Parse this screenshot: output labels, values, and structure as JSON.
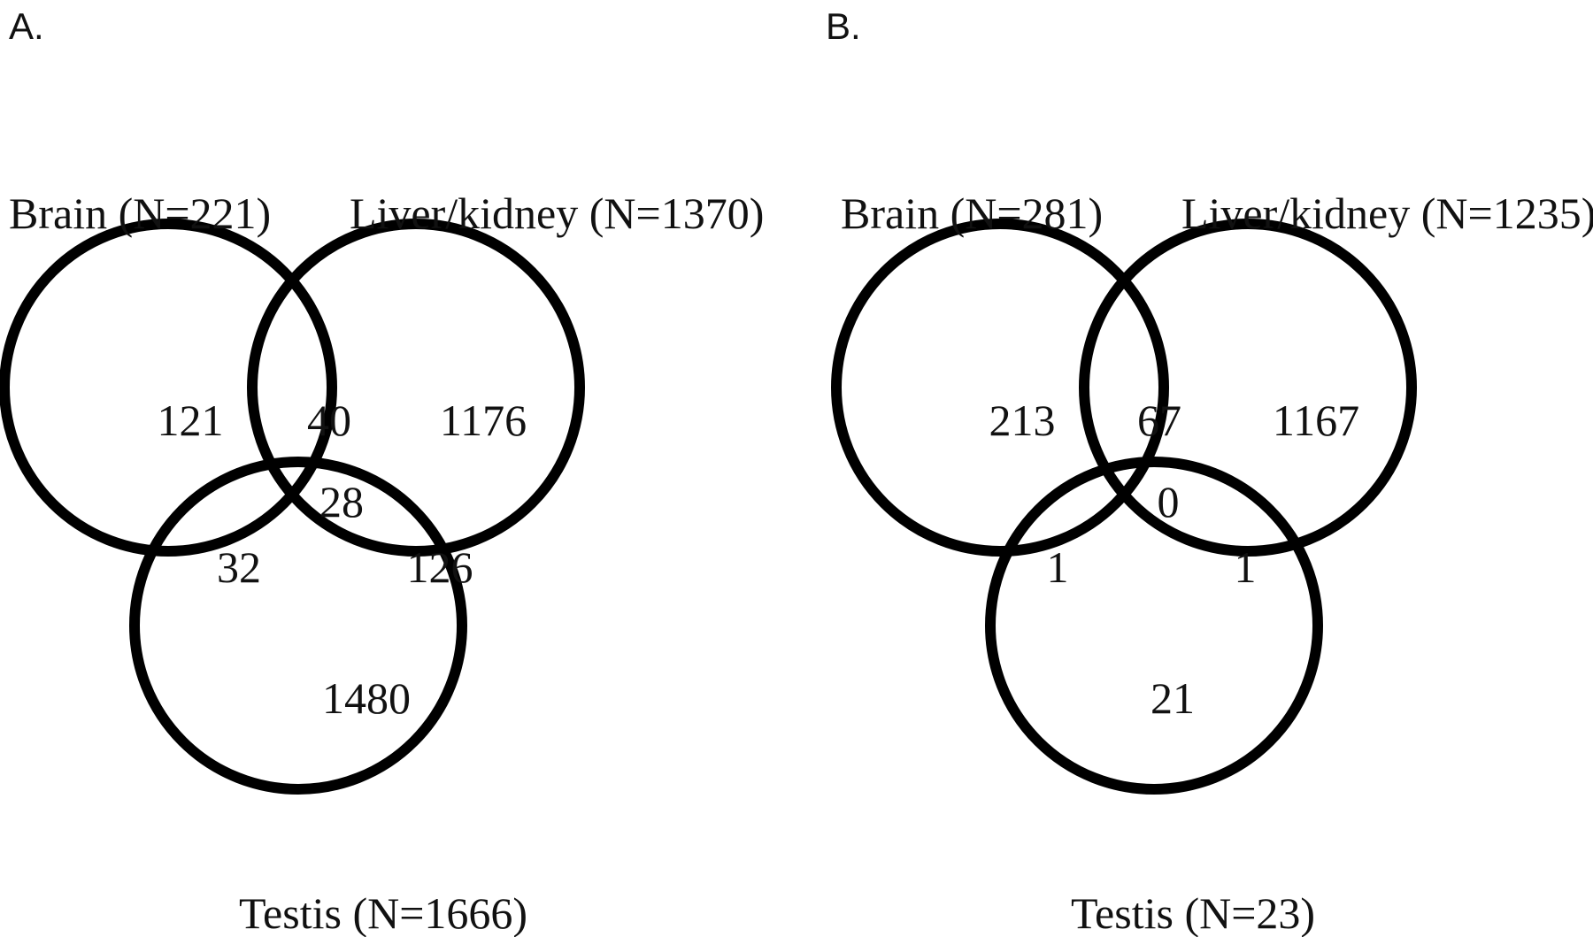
{
  "panels": [
    {
      "letter": "A.",
      "sets": {
        "brain": "Brain (N=221)",
        "liver_kidney": "Liver/kidney (N=1370)",
        "testis": "Testis (N=1666)"
      },
      "regions": {
        "brain_only": "121",
        "brain_liver": "40",
        "liver_only": "1176",
        "all_three": "28",
        "brain_testis": "32",
        "liver_testis": "126",
        "testis_only": "1480"
      }
    },
    {
      "letter": "B.",
      "sets": {
        "brain": "Brain (N=281)",
        "liver_kidney": "Liver/kidney (N=1235)",
        "testis": "Testis (N=23)"
      },
      "regions": {
        "brain_only": "213",
        "brain_liver": "67",
        "liver_only": "1167",
        "all_three": "0",
        "brain_testis": "1",
        "liver_testis": "1",
        "testis_only": "21"
      }
    }
  ],
  "colors": {
    "outline": "#000000",
    "text": "#111111",
    "background": "#ffffff"
  }
}
